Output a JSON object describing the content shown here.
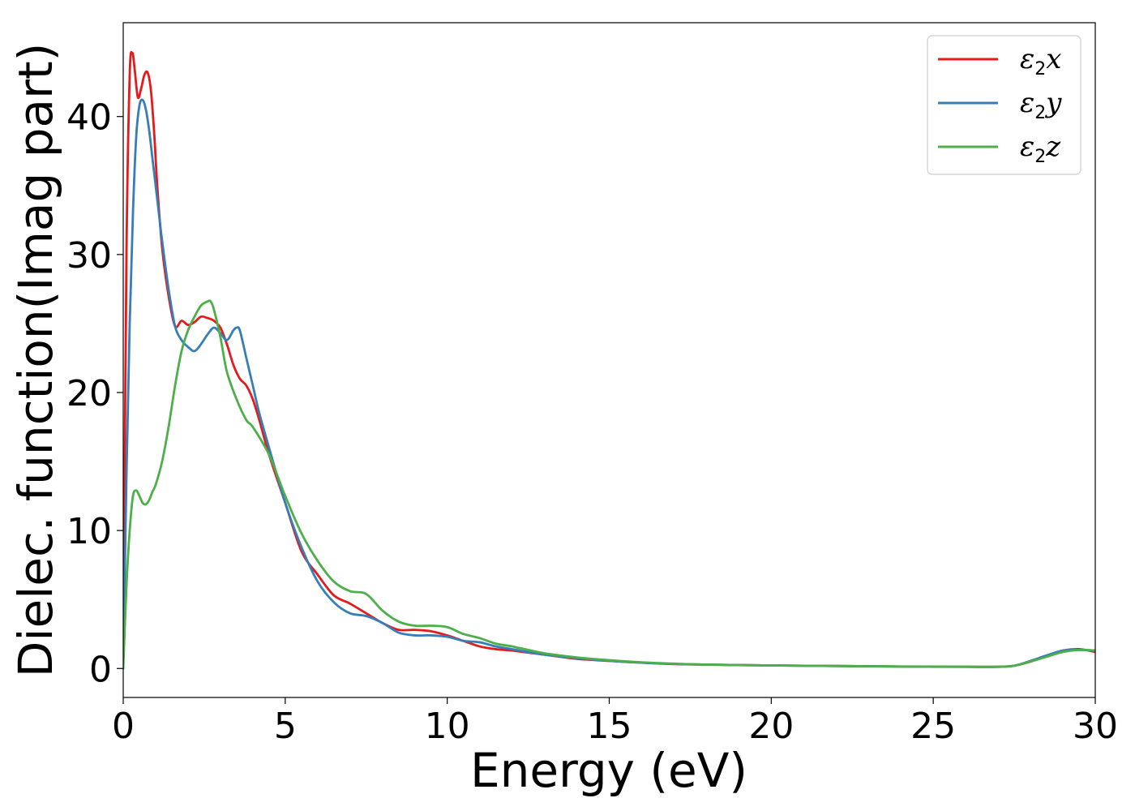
{
  "chart_data": {
    "type": "line",
    "title": "",
    "xlabel": "Energy (eV)",
    "ylabel": "Dielec. function(Imag part)",
    "xlim": [
      0,
      30
    ],
    "ylim": [
      -2.1,
      46.8
    ],
    "xticks": [
      0,
      5,
      10,
      15,
      20,
      25,
      30
    ],
    "yticks": [
      0,
      10,
      20,
      30,
      40
    ],
    "grid": false,
    "legend_position": "top-right",
    "series": [
      {
        "name": "ε2x",
        "legend": {
          "base": "ε",
          "sub": "2",
          "suffix": "x"
        },
        "color": "#e41a1c",
        "x": [
          0,
          0.1,
          0.2,
          0.28,
          0.35,
          0.45,
          0.55,
          0.65,
          0.75,
          0.85,
          0.95,
          1.05,
          1.2,
          1.4,
          1.6,
          1.8,
          2.0,
          2.2,
          2.4,
          2.6,
          2.8,
          3.0,
          3.2,
          3.4,
          3.6,
          3.8,
          4.0,
          4.2,
          4.5,
          5.0,
          5.5,
          6.0,
          6.5,
          7.0,
          7.5,
          8.0,
          8.5,
          9.0,
          9.5,
          10.0,
          10.5,
          11.0,
          11.5,
          12.0,
          13.0,
          14.0,
          15.0,
          16.0,
          17.0,
          18.0,
          20.0,
          22.0,
          24.0,
          26.0,
          27.0,
          27.5,
          28.0,
          28.5,
          29.0,
          29.5,
          30.0
        ],
        "y": [
          0,
          30,
          43,
          44.6,
          43.5,
          41.4,
          42.0,
          43.0,
          43.2,
          42.0,
          39.0,
          35.0,
          30.5,
          27.0,
          24.8,
          25.2,
          24.9,
          25.1,
          25.5,
          25.4,
          25.2,
          24.7,
          23.5,
          22.0,
          21.0,
          20.5,
          19.5,
          18.0,
          15.5,
          12.0,
          8.5,
          6.8,
          5.3,
          4.7,
          4.0,
          3.3,
          2.8,
          2.8,
          2.7,
          2.4,
          2.0,
          1.6,
          1.4,
          1.3,
          1.0,
          0.7,
          0.55,
          0.42,
          0.32,
          0.28,
          0.22,
          0.18,
          0.14,
          0.12,
          0.12,
          0.2,
          0.5,
          0.9,
          1.3,
          1.4,
          1.2
        ]
      },
      {
        "name": "ε2y",
        "legend": {
          "base": "ε",
          "sub": "2",
          "suffix": "y"
        },
        "color": "#377eb8",
        "x": [
          0,
          0.1,
          0.2,
          0.3,
          0.4,
          0.5,
          0.6,
          0.7,
          0.8,
          0.9,
          1.0,
          1.1,
          1.2,
          1.4,
          1.6,
          1.8,
          2.0,
          2.2,
          2.4,
          2.6,
          2.8,
          3.0,
          3.2,
          3.4,
          3.5,
          3.6,
          3.8,
          4.0,
          4.2,
          4.5,
          5.0,
          5.5,
          6.0,
          6.5,
          7.0,
          7.5,
          8.0,
          8.5,
          9.0,
          9.5,
          10.0,
          10.5,
          11.0,
          11.5,
          12.0,
          13.0,
          14.0,
          15.0,
          16.0,
          17.0,
          18.0,
          20.0,
          22.0,
          24.0,
          26.0,
          27.0,
          27.5,
          28.0,
          28.5,
          29.0,
          29.5,
          30.0
        ],
        "y": [
          0,
          14,
          25,
          33,
          38.5,
          40.8,
          41.2,
          40.5,
          39.0,
          37.0,
          35.0,
          33.0,
          31.0,
          27.5,
          24.8,
          23.8,
          23.3,
          23.0,
          23.5,
          24.2,
          24.7,
          24.3,
          23.8,
          24.5,
          24.7,
          24.5,
          22.5,
          20.5,
          18.5,
          16.0,
          12.0,
          8.8,
          6.3,
          4.8,
          4.0,
          3.8,
          3.3,
          2.6,
          2.4,
          2.4,
          2.3,
          2.0,
          1.9,
          1.6,
          1.4,
          1.0,
          0.75,
          0.55,
          0.42,
          0.33,
          0.28,
          0.22,
          0.18,
          0.14,
          0.12,
          0.12,
          0.2,
          0.55,
          0.95,
          1.3,
          1.35,
          1.3
        ]
      },
      {
        "name": "ε2z",
        "legend": {
          "base": "ε",
          "sub": "2",
          "suffix": "z"
        },
        "color": "#4daf4a",
        "x": [
          0,
          0.1,
          0.2,
          0.3,
          0.4,
          0.5,
          0.6,
          0.7,
          0.8,
          0.9,
          1.0,
          1.2,
          1.4,
          1.6,
          1.8,
          2.0,
          2.2,
          2.4,
          2.6,
          2.7,
          2.8,
          3.0,
          3.2,
          3.5,
          3.8,
          4.0,
          4.5,
          5.0,
          5.5,
          6.0,
          6.5,
          7.0,
          7.5,
          8.0,
          8.5,
          9.0,
          9.5,
          10.0,
          10.5,
          11.0,
          11.5,
          12.0,
          13.0,
          14.0,
          15.0,
          16.0,
          17.0,
          18.0,
          20.0,
          22.0,
          24.0,
          26.0,
          27.0,
          27.5,
          28.0,
          28.5,
          29.0,
          29.5,
          30.0
        ],
        "y": [
          0,
          6,
          10,
          12.5,
          12.9,
          12.5,
          12.0,
          11.9,
          12.2,
          12.8,
          13.3,
          15.0,
          17.5,
          20.5,
          23.0,
          24.5,
          25.5,
          26.3,
          26.6,
          26.6,
          26.0,
          24.0,
          21.5,
          19.5,
          18.0,
          17.5,
          15.5,
          12.5,
          9.8,
          7.8,
          6.3,
          5.6,
          5.4,
          4.2,
          3.4,
          3.1,
          3.1,
          3.0,
          2.5,
          2.2,
          1.8,
          1.6,
          1.1,
          0.8,
          0.6,
          0.45,
          0.35,
          0.28,
          0.22,
          0.18,
          0.15,
          0.13,
          0.13,
          0.2,
          0.5,
          0.85,
          1.2,
          1.35,
          1.3
        ]
      }
    ]
  }
}
